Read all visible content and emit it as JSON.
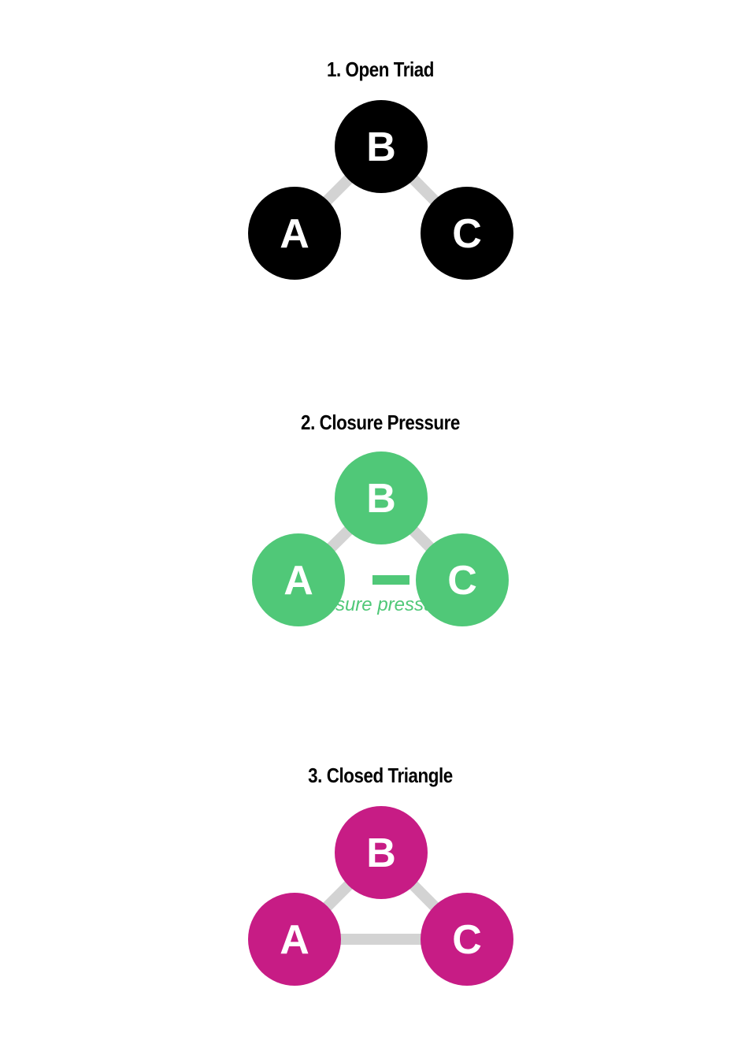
{
  "colors": {
    "edge": "#d3d3d3",
    "node_text": "#ffffff",
    "title_text": "#000000"
  },
  "panels": [
    {
      "title": "1. Open Triad",
      "node_color": "#000000",
      "nodes": [
        {
          "id": "B",
          "label": "B"
        },
        {
          "id": "A",
          "label": "A"
        },
        {
          "id": "C",
          "label": "C"
        }
      ],
      "edges": [
        {
          "from": "A",
          "to": "B",
          "kind": "solid"
        },
        {
          "from": "B",
          "to": "C",
          "kind": "solid"
        }
      ]
    },
    {
      "title": "2. Closure Pressure",
      "node_color": "#50c878",
      "nodes": [
        {
          "id": "B",
          "label": "B"
        },
        {
          "id": "A",
          "label": "A"
        },
        {
          "id": "C",
          "label": "C"
        }
      ],
      "edges": [
        {
          "from": "A",
          "to": "B",
          "kind": "solid"
        },
        {
          "from": "B",
          "to": "C",
          "kind": "solid"
        },
        {
          "from": "A",
          "to": "C",
          "kind": "dashed",
          "label": "closure pressure"
        }
      ]
    },
    {
      "title": "3. Closed Triangle",
      "node_color": "#c71c85",
      "nodes": [
        {
          "id": "B",
          "label": "B"
        },
        {
          "id": "A",
          "label": "A"
        },
        {
          "id": "C",
          "label": "C"
        }
      ],
      "edges": [
        {
          "from": "A",
          "to": "B",
          "kind": "solid"
        },
        {
          "from": "B",
          "to": "C",
          "kind": "solid"
        },
        {
          "from": "A",
          "to": "C",
          "kind": "solid"
        }
      ]
    }
  ]
}
